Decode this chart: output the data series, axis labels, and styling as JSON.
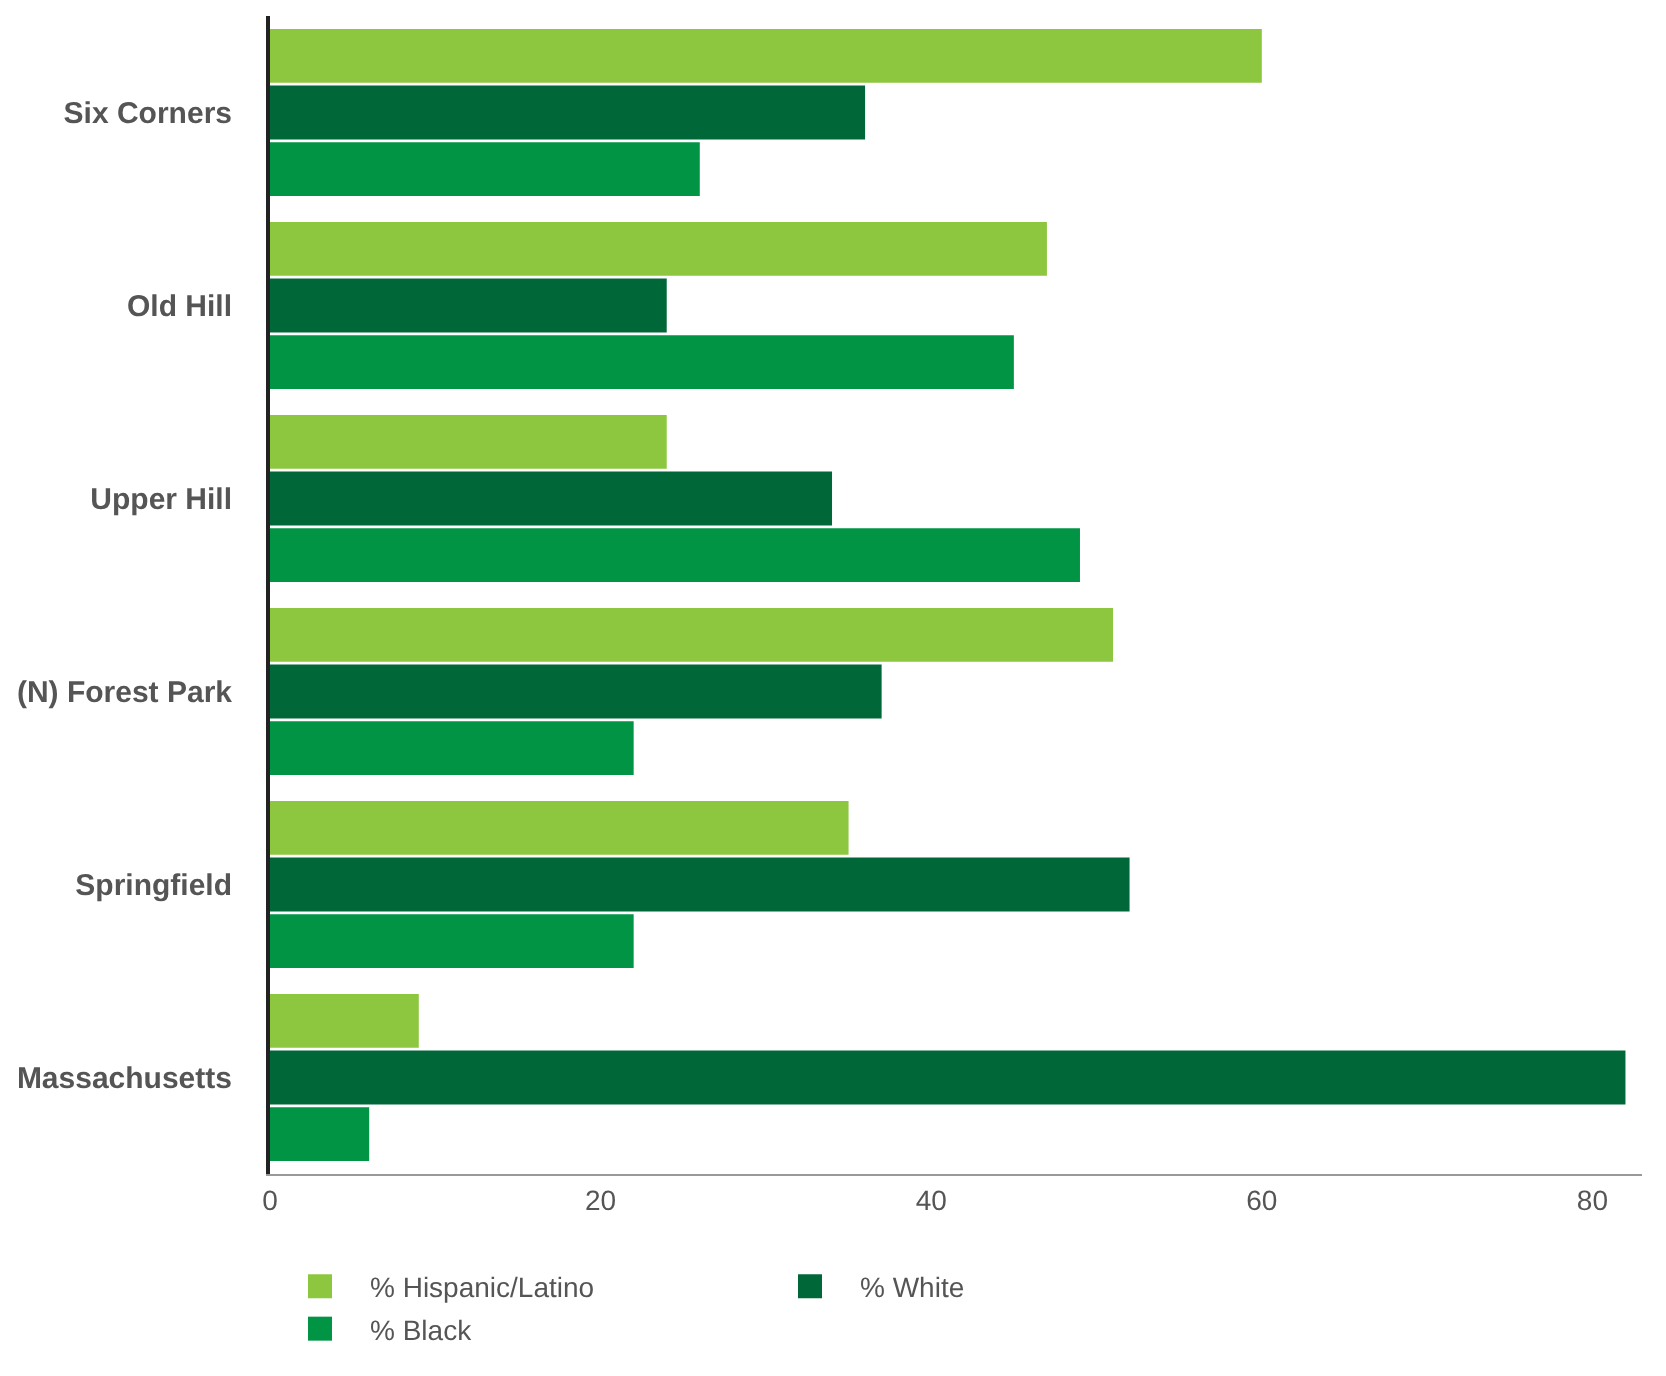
{
  "chart_data": {
    "type": "bar",
    "orientation": "horizontal",
    "categories": [
      "Six Corners",
      "Old Hill",
      "Upper Hill",
      "(N) Forest Park",
      "Springfield",
      "Massachusetts"
    ],
    "series": [
      {
        "name": "% Hispanic/Latino",
        "color": "#8dc63f",
        "values": [
          60,
          47,
          24,
          51,
          35,
          9
        ]
      },
      {
        "name": "% White",
        "color": "#006838",
        "values": [
          36,
          24,
          34,
          37,
          52,
          82
        ]
      },
      {
        "name": "% Black",
        "color": "#009444",
        "values": [
          26,
          45,
          49,
          22,
          22,
          6
        ]
      }
    ],
    "xlim": [
      0,
      83
    ],
    "xticks": [
      0,
      20,
      40,
      60,
      80
    ],
    "legend": "bottom"
  }
}
